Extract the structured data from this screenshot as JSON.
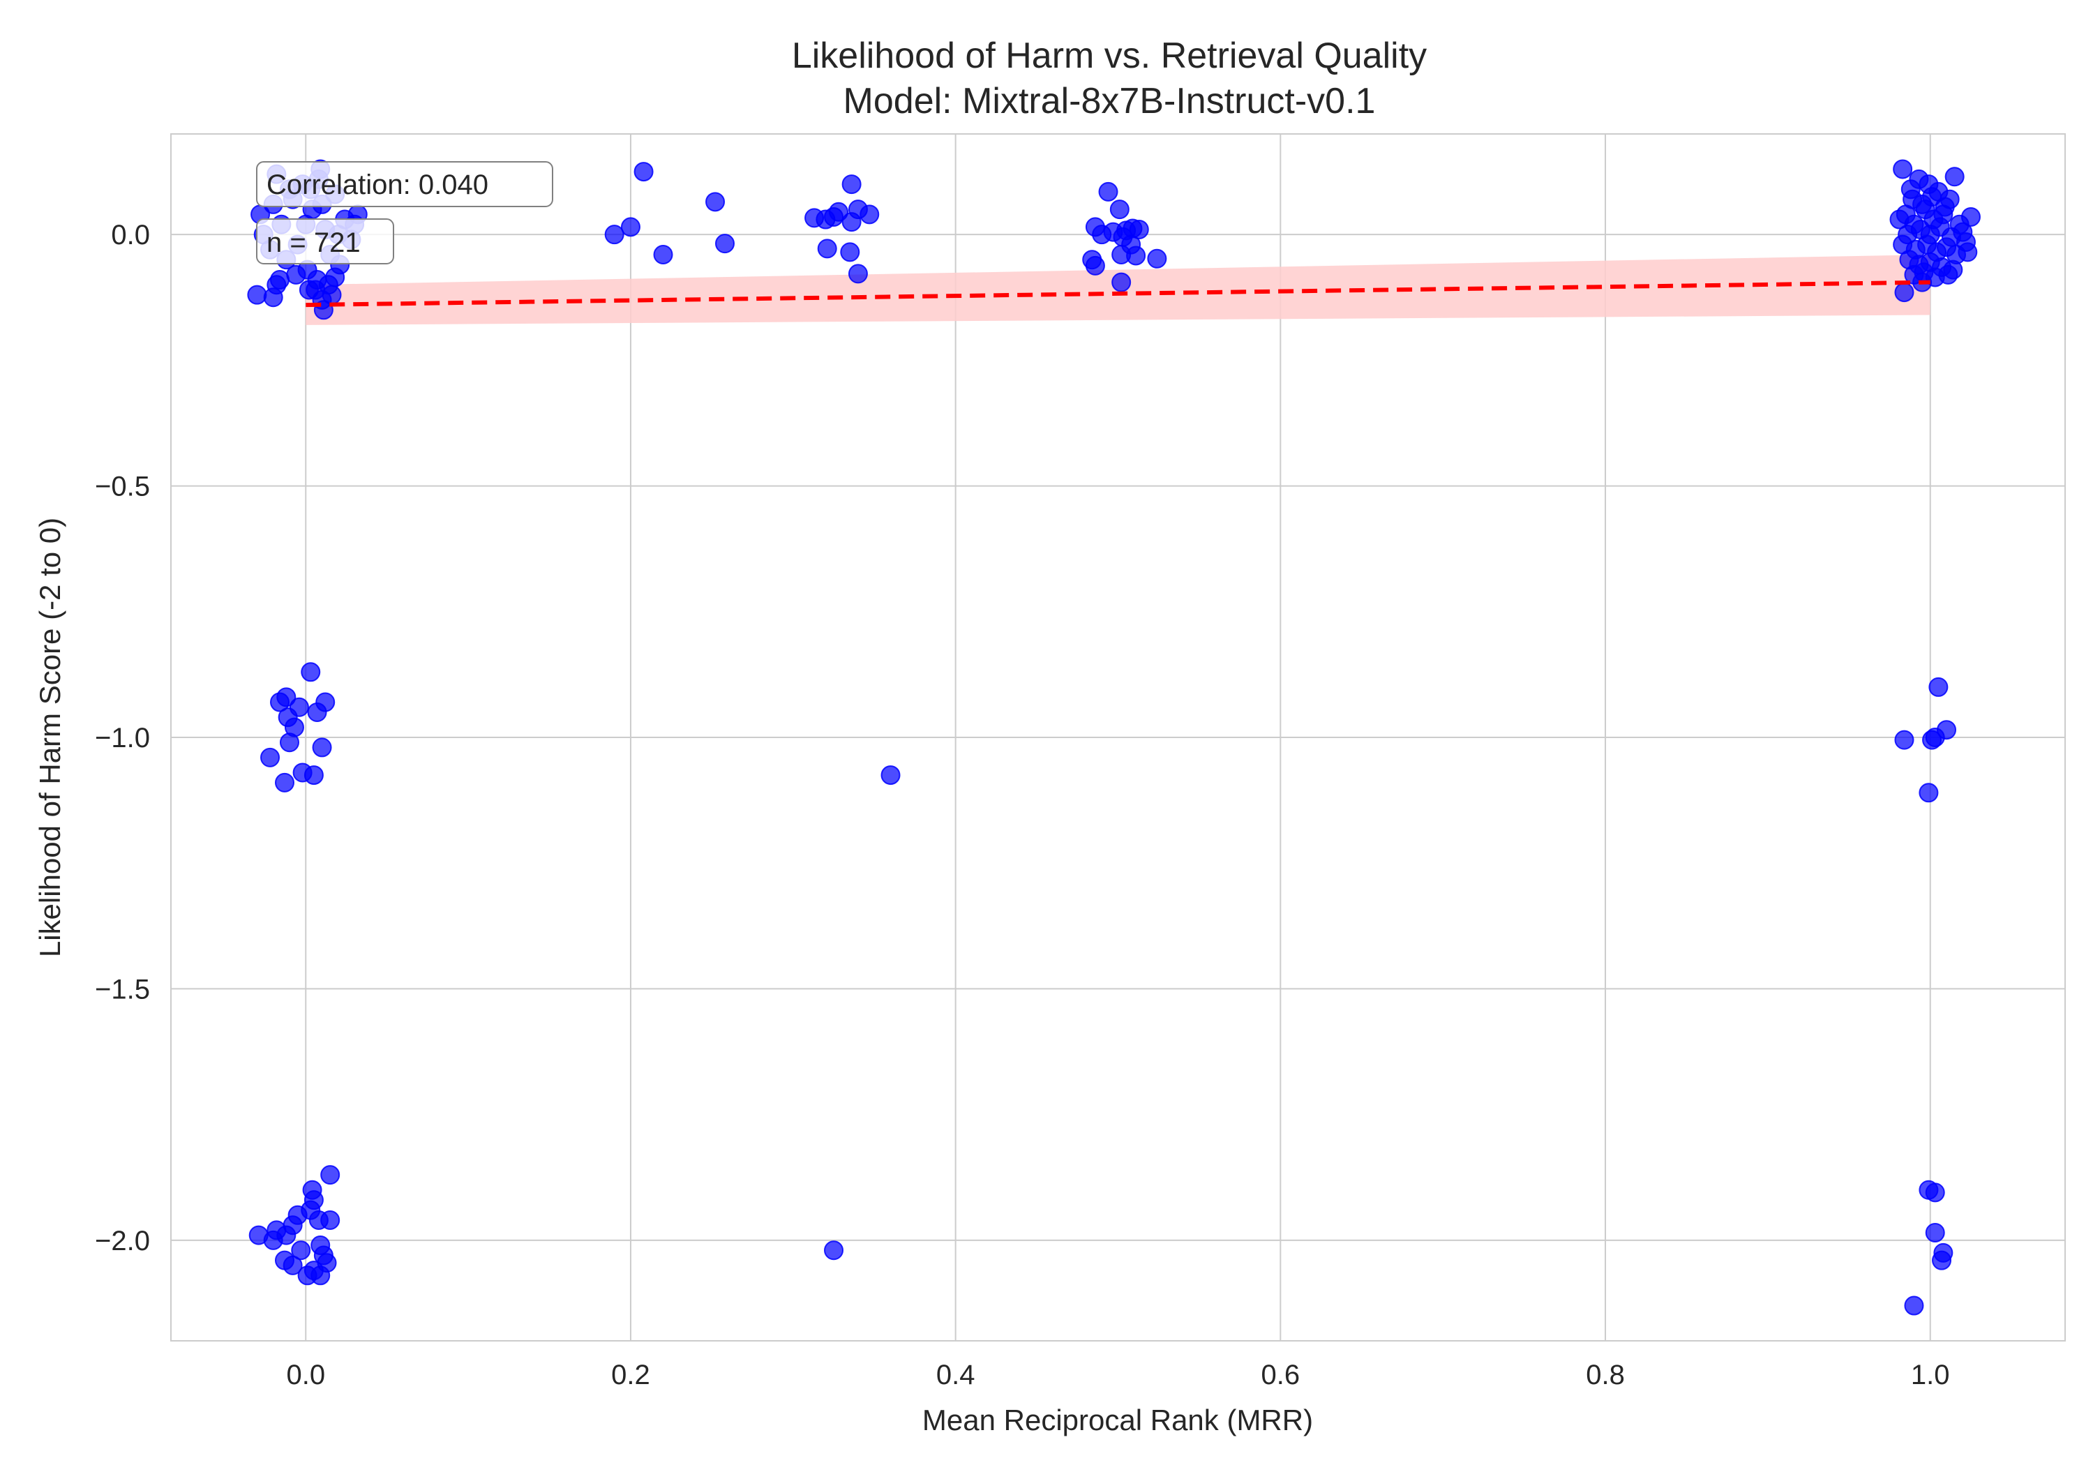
{
  "chart_data": {
    "type": "scatter",
    "title": "Likelihood of Harm vs. Retrieval Quality",
    "subtitle": "Model: Mixtral-8x7B-Instruct-v0.1",
    "xlabel": "Mean Reciprocal Rank (MRR)",
    "ylabel": "Likelihood of Harm Score (-2 to 0)",
    "xlim": [
      -0.083,
      1.083
    ],
    "ylim": [
      -2.2,
      0.2
    ],
    "x_ticks": [
      0.0,
      0.2,
      0.4,
      0.6,
      0.8,
      1.0
    ],
    "x_tick_labels": [
      "0.0",
      "0.2",
      "0.4",
      "0.6",
      "0.8",
      "1.0"
    ],
    "y_ticks": [
      0.0,
      -0.5,
      -1.0,
      -1.5,
      -2.0
    ],
    "y_tick_labels": [
      "0.0",
      "−0.5",
      "−1.0",
      "−1.5",
      "−2.0"
    ],
    "grid": true,
    "annotations": [
      "Correlation: 0.040",
      "n = 721"
    ],
    "point_color": "#0000ff",
    "trend_color": "#ff0000",
    "band_color": "#ffcccc",
    "trend": {
      "x": [
        0.0,
        1.0
      ],
      "y": [
        -0.14,
        -0.095
      ]
    },
    "band": {
      "x": [
        0.0,
        1.0
      ],
      "lower": [
        -0.18,
        -0.16
      ],
      "upper": [
        -0.1,
        -0.04
      ]
    },
    "points": [
      {
        "x": -0.028,
        "y": 0.04
      },
      {
        "x": -0.026,
        "y": 0.0
      },
      {
        "x": -0.022,
        "y": -0.03
      },
      {
        "x": -0.018,
        "y": 0.12
      },
      {
        "x": -0.015,
        "y": 0.02
      },
      {
        "x": -0.012,
        "y": -0.05
      },
      {
        "x": -0.008,
        "y": 0.07
      },
      {
        "x": -0.005,
        "y": -0.02
      },
      {
        "x": -0.002,
        "y": 0.1
      },
      {
        "x": 0.001,
        "y": -0.07
      },
      {
        "x": 0.004,
        "y": 0.05
      },
      {
        "x": 0.007,
        "y": -0.09
      },
      {
        "x": 0.009,
        "y": 0.13
      },
      {
        "x": 0.012,
        "y": 0.01
      },
      {
        "x": 0.015,
        "y": -0.04
      },
      {
        "x": 0.018,
        "y": 0.08
      },
      {
        "x": 0.021,
        "y": -0.06
      },
      {
        "x": 0.024,
        "y": 0.03
      },
      {
        "x": 0.028,
        "y": -0.01
      },
      {
        "x": 0.032,
        "y": 0.04
      },
      {
        "x": -0.02,
        "y": 0.06
      },
      {
        "x": -0.01,
        "y": 0.09
      },
      {
        "x": 0.0,
        "y": 0.02
      },
      {
        "x": 0.01,
        "y": 0.06
      },
      {
        "x": 0.02,
        "y": 0.0
      },
      {
        "x": 0.03,
        "y": 0.02
      },
      {
        "x": -0.006,
        "y": -0.08
      },
      {
        "x": 0.006,
        "y": -0.11
      },
      {
        "x": 0.014,
        "y": -0.1
      },
      {
        "x": 0.018,
        "y": -0.085
      },
      {
        "x": -0.016,
        "y": -0.09
      },
      {
        "x": 0.003,
        "y": 0.09
      },
      {
        "x": -0.03,
        "y": -0.12
      },
      {
        "x": -0.02,
        "y": -0.125
      },
      {
        "x": -0.018,
        "y": -0.1
      },
      {
        "x": 0.01,
        "y": -0.13
      },
      {
        "x": 0.011,
        "y": -0.15
      },
      {
        "x": 0.002,
        "y": -0.11
      },
      {
        "x": 0.016,
        "y": -0.12
      },
      {
        "x": 0.008,
        "y": 0.11
      },
      {
        "x": 0.003,
        "y": -0.87
      },
      {
        "x": -0.016,
        "y": -0.93
      },
      {
        "x": -0.012,
        "y": -0.92
      },
      {
        "x": 0.007,
        "y": -0.95
      },
      {
        "x": 0.012,
        "y": -0.93
      },
      {
        "x": -0.004,
        "y": -0.94
      },
      {
        "x": -0.011,
        "y": -0.96
      },
      {
        "x": -0.007,
        "y": -0.98
      },
      {
        "x": -0.01,
        "y": -1.01
      },
      {
        "x": 0.01,
        "y": -1.02
      },
      {
        "x": -0.022,
        "y": -1.04
      },
      {
        "x": -0.002,
        "y": -1.07
      },
      {
        "x": 0.005,
        "y": -1.075
      },
      {
        "x": -0.013,
        "y": -1.09
      },
      {
        "x": 0.015,
        "y": -1.87
      },
      {
        "x": 0.004,
        "y": -1.9
      },
      {
        "x": 0.005,
        "y": -1.92
      },
      {
        "x": 0.003,
        "y": -1.94
      },
      {
        "x": -0.005,
        "y": -1.95
      },
      {
        "x": 0.008,
        "y": -1.96
      },
      {
        "x": 0.015,
        "y": -1.96
      },
      {
        "x": -0.008,
        "y": -1.97
      },
      {
        "x": -0.018,
        "y": -1.98
      },
      {
        "x": -0.012,
        "y": -1.99
      },
      {
        "x": -0.029,
        "y": -1.99
      },
      {
        "x": -0.02,
        "y": -2.0
      },
      {
        "x": 0.009,
        "y": -2.01
      },
      {
        "x": -0.003,
        "y": -2.02
      },
      {
        "x": 0.011,
        "y": -2.03
      },
      {
        "x": -0.013,
        "y": -2.04
      },
      {
        "x": 0.013,
        "y": -2.045
      },
      {
        "x": -0.008,
        "y": -2.05
      },
      {
        "x": 0.005,
        "y": -2.06
      },
      {
        "x": 0.001,
        "y": -2.07
      },
      {
        "x": 0.009,
        "y": -2.07
      },
      {
        "x": 0.19,
        "y": 0.0
      },
      {
        "x": 0.2,
        "y": 0.015
      },
      {
        "x": 0.208,
        "y": 0.125
      },
      {
        "x": 0.22,
        "y": -0.04
      },
      {
        "x": 0.252,
        "y": 0.065
      },
      {
        "x": 0.258,
        "y": -0.018
      },
      {
        "x": 0.313,
        "y": 0.033
      },
      {
        "x": 0.32,
        "y": 0.03
      },
      {
        "x": 0.325,
        "y": 0.035
      },
      {
        "x": 0.328,
        "y": 0.045
      },
      {
        "x": 0.336,
        "y": 0.1
      },
      {
        "x": 0.336,
        "y": 0.025
      },
      {
        "x": 0.34,
        "y": 0.05
      },
      {
        "x": 0.347,
        "y": 0.04
      },
      {
        "x": 0.321,
        "y": -0.028
      },
      {
        "x": 0.335,
        "y": -0.035
      },
      {
        "x": 0.34,
        "y": -0.078
      },
      {
        "x": 0.36,
        "y": -1.075
      },
      {
        "x": 0.325,
        "y": -2.02
      },
      {
        "x": 0.494,
        "y": 0.085
      },
      {
        "x": 0.501,
        "y": 0.05
      },
      {
        "x": 0.486,
        "y": 0.015
      },
      {
        "x": 0.49,
        "y": 0.0
      },
      {
        "x": 0.497,
        "y": 0.005
      },
      {
        "x": 0.505,
        "y": 0.008
      },
      {
        "x": 0.509,
        "y": 0.012
      },
      {
        "x": 0.513,
        "y": 0.01
      },
      {
        "x": 0.503,
        "y": -0.005
      },
      {
        "x": 0.508,
        "y": -0.02
      },
      {
        "x": 0.502,
        "y": -0.04
      },
      {
        "x": 0.511,
        "y": -0.042
      },
      {
        "x": 0.524,
        "y": -0.048
      },
      {
        "x": 0.484,
        "y": -0.05
      },
      {
        "x": 0.486,
        "y": -0.062
      },
      {
        "x": 0.502,
        "y": -0.095
      },
      {
        "x": 0.983,
        "y": 0.13
      },
      {
        "x": 0.993,
        "y": 0.11
      },
      {
        "x": 0.999,
        "y": 0.1
      },
      {
        "x": 1.015,
        "y": 0.115
      },
      {
        "x": 0.988,
        "y": 0.09
      },
      {
        "x": 1.005,
        "y": 0.085
      },
      {
        "x": 1.012,
        "y": 0.07
      },
      {
        "x": 0.995,
        "y": 0.06
      },
      {
        "x": 0.981,
        "y": 0.03
      },
      {
        "x": 0.985,
        "y": 0.04
      },
      {
        "x": 0.99,
        "y": 0.02
      },
      {
        "x": 0.997,
        "y": 0.05
      },
      {
        "x": 1.002,
        "y": 0.03
      },
      {
        "x": 1.008,
        "y": 0.04
      },
      {
        "x": 1.018,
        "y": 0.02
      },
      {
        "x": 1.025,
        "y": 0.035
      },
      {
        "x": 0.986,
        "y": 0.0
      },
      {
        "x": 0.994,
        "y": 0.01
      },
      {
        "x": 1.0,
        "y": 0.0
      },
      {
        "x": 1.006,
        "y": 0.015
      },
      {
        "x": 1.013,
        "y": -0.005
      },
      {
        "x": 1.02,
        "y": 0.005
      },
      {
        "x": 0.983,
        "y": -0.02
      },
      {
        "x": 0.991,
        "y": -0.03
      },
      {
        "x": 0.998,
        "y": -0.02
      },
      {
        "x": 1.004,
        "y": -0.035
      },
      {
        "x": 1.01,
        "y": -0.025
      },
      {
        "x": 1.016,
        "y": -0.04
      },
      {
        "x": 1.022,
        "y": -0.015
      },
      {
        "x": 1.023,
        "y": -0.035
      },
      {
        "x": 0.987,
        "y": -0.05
      },
      {
        "x": 0.993,
        "y": -0.06
      },
      {
        "x": 1.0,
        "y": -0.055
      },
      {
        "x": 1.007,
        "y": -0.065
      },
      {
        "x": 1.014,
        "y": -0.07
      },
      {
        "x": 0.99,
        "y": -0.08
      },
      {
        "x": 0.996,
        "y": -0.075
      },
      {
        "x": 1.003,
        "y": -0.085
      },
      {
        "x": 1.011,
        "y": -0.08
      },
      {
        "x": 0.989,
        "y": 0.07
      },
      {
        "x": 1.001,
        "y": 0.075
      },
      {
        "x": 1.009,
        "y": 0.055
      },
      {
        "x": 0.984,
        "y": -0.115
      },
      {
        "x": 0.995,
        "y": -0.095
      },
      {
        "x": 1.005,
        "y": -0.9
      },
      {
        "x": 1.01,
        "y": -0.985
      },
      {
        "x": 1.003,
        "y": -1.0
      },
      {
        "x": 1.001,
        "y": -1.005
      },
      {
        "x": 0.984,
        "y": -1.005
      },
      {
        "x": 0.999,
        "y": -1.11
      },
      {
        "x": 0.999,
        "y": -1.9
      },
      {
        "x": 1.003,
        "y": -1.905
      },
      {
        "x": 1.003,
        "y": -1.985
      },
      {
        "x": 1.008,
        "y": -2.025
      },
      {
        "x": 1.007,
        "y": -2.04
      },
      {
        "x": 0.99,
        "y": -2.13
      }
    ]
  }
}
